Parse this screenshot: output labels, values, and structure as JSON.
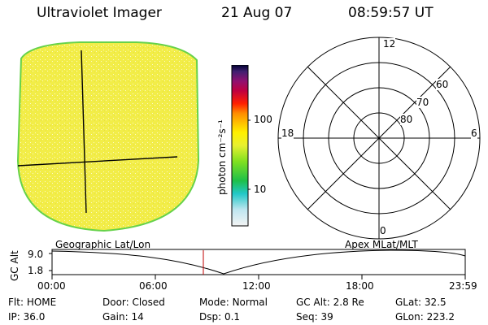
{
  "header": {
    "instrument": "Ultraviolet Imager",
    "date": "21 Aug 07",
    "time": "08:59:57 UT"
  },
  "colorbar": {
    "ticks": [
      "100",
      "10"
    ],
    "unit_label": "photon cm⁻²s⁻¹"
  },
  "polar_grid": {
    "mlt_labels": [
      "12",
      "18",
      "6",
      "0"
    ],
    "lat_labels": [
      "60",
      "70",
      "80"
    ]
  },
  "orbit_panel": {
    "left_title": "Geographic Lat/Lon",
    "right_title": "Apex MLat/MLT",
    "y_axis_label": "GC Alt",
    "y_ticks": [
      "9.0",
      "1.8"
    ],
    "x_ticks": [
      "00:00",
      "06:00",
      "12:00",
      "18:00",
      "23:59"
    ]
  },
  "info": {
    "row1": [
      {
        "label": "Flt:",
        "value": "HOME"
      },
      {
        "label": "Door:",
        "value": "Closed"
      },
      {
        "label": "Mode:",
        "value": "Normal"
      },
      {
        "label": "GC Alt:",
        "value": "2.8 Re"
      },
      {
        "label": "GLat:",
        "value": "32.5"
      }
    ],
    "row2": [
      {
        "label": "IP:",
        "value": "36.0"
      },
      {
        "label": "Gain:",
        "value": "14"
      },
      {
        "label": "Dsp:",
        "value": "0.1"
      },
      {
        "label": "Seq:",
        "value": "39"
      },
      {
        "label": "GLon:",
        "value": "223.2"
      }
    ]
  },
  "colors": {
    "disk_fill": "#f4ef4a",
    "disk_rim": "#66d24a",
    "marker": "#c00000"
  }
}
